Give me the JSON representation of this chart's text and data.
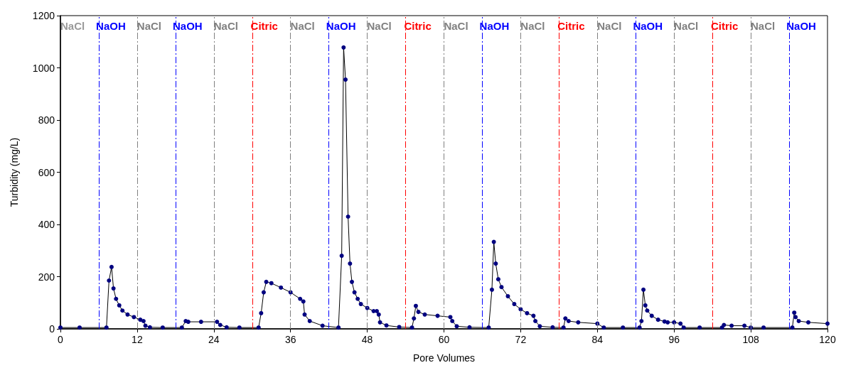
{
  "chart_data": {
    "type": "line",
    "xlabel": "Pore Volumes",
    "ylabel": "Turbidity (mg/L)",
    "xlim": [
      0,
      120
    ],
    "xticks": [
      0,
      12,
      24,
      36,
      48,
      60,
      72,
      84,
      96,
      108,
      120
    ],
    "ylim": [
      0,
      1200
    ],
    "yticks": [
      0,
      200,
      400,
      600,
      800,
      1000,
      1200
    ],
    "marker": "circle",
    "line_style": "solid",
    "grid": false,
    "annotations": [
      "NaCl"
    ],
    "series": [
      {
        "color": "#000080",
        "x": [
          0,
          3,
          7.2,
          7.6,
          8,
          8.3,
          8.7,
          9.2,
          9.7,
          10.5,
          11.5,
          12.5,
          13,
          13.3,
          14,
          16,
          19,
          19.6,
          20,
          22,
          24.5,
          25,
          26,
          28,
          31,
          31.4,
          31.8,
          32.2,
          33,
          34.5,
          36,
          37.5,
          38,
          38.2,
          39,
          41,
          43.5,
          44,
          44.3,
          44.6,
          45,
          45.3,
          45.6,
          46,
          46.5,
          47,
          48,
          49,
          49.5,
          49.8,
          50,
          51,
          53,
          55,
          55.3,
          55.6,
          56,
          57,
          59,
          61,
          61.3,
          62,
          64,
          67,
          67.5,
          67.8,
          68.1,
          68.5,
          69,
          70,
          71,
          72,
          73,
          74,
          74.3,
          75,
          77,
          78.7,
          79,
          79.5,
          81,
          84,
          85,
          88,
          90.6,
          90.9,
          91.2,
          91.5,
          91.8,
          92.5,
          93.5,
          94.5,
          95,
          96,
          97,
          97.5,
          100,
          103.5,
          103.8,
          105,
          107,
          108,
          110,
          114.5,
          114.8,
          115,
          115.5,
          117,
          120
        ],
        "values": [
          5,
          5,
          5,
          185,
          237,
          155,
          115,
          90,
          70,
          55,
          45,
          35,
          30,
          12,
          6,
          5,
          5,
          30,
          27,
          27,
          27,
          15,
          6,
          5,
          5,
          60,
          140,
          180,
          175,
          158,
          140,
          115,
          105,
          55,
          30,
          12,
          5,
          280,
          1078,
          955,
          430,
          250,
          180,
          140,
          115,
          95,
          80,
          68,
          68,
          55,
          25,
          13,
          7,
          5,
          40,
          88,
          65,
          55,
          50,
          45,
          30,
          10,
          6,
          5,
          150,
          333,
          250,
          190,
          160,
          125,
          95,
          75,
          60,
          50,
          30,
          10,
          6,
          5,
          40,
          30,
          25,
          20,
          5,
          5,
          5,
          30,
          150,
          90,
          70,
          50,
          35,
          28,
          25,
          25,
          20,
          5,
          5,
          5,
          15,
          12,
          12,
          5,
          5,
          5,
          62,
          45,
          30,
          25,
          20
        ]
      }
    ],
    "ref_lines": [
      {
        "axis": "x",
        "value": 6,
        "label": "NaOH",
        "color": "#0000ff",
        "line_style": "dashed"
      },
      {
        "axis": "x",
        "value": 12,
        "label": "NaCl",
        "color": "#808080",
        "line_style": "dashed"
      },
      {
        "axis": "x",
        "value": 18,
        "label": "NaOH",
        "color": "#0000ff",
        "line_style": "dashed"
      },
      {
        "axis": "x",
        "value": 24,
        "label": "NaCl",
        "color": "#808080",
        "line_style": "dashed"
      },
      {
        "axis": "x",
        "value": 30,
        "label": "Citric",
        "color": "#ff0000",
        "line_style": "dashed"
      },
      {
        "axis": "x",
        "value": 36,
        "label": "NaCl",
        "color": "#808080",
        "line_style": "dashed"
      },
      {
        "axis": "x",
        "value": 42,
        "label": "NaOH",
        "color": "#0000ff",
        "line_style": "dashed"
      },
      {
        "axis": "x",
        "value": 48,
        "label": "NaCl",
        "color": "#808080",
        "line_style": "dashed"
      },
      {
        "axis": "x",
        "value": 54,
        "label": "Citric",
        "color": "#ff0000",
        "line_style": "dashed"
      },
      {
        "axis": "x",
        "value": 60,
        "label": "NaCl",
        "color": "#808080",
        "line_style": "dashed"
      },
      {
        "axis": "x",
        "value": 66,
        "label": "NaOH",
        "color": "#0000ff",
        "line_style": "dashed"
      },
      {
        "axis": "x",
        "value": 72,
        "label": "NaCl",
        "color": "#808080",
        "line_style": "dashed"
      },
      {
        "axis": "x",
        "value": 78,
        "label": "Citric",
        "color": "#ff0000",
        "line_style": "dashed"
      },
      {
        "axis": "x",
        "value": 84,
        "label": "NaCl",
        "color": "#808080",
        "line_style": "dashed"
      },
      {
        "axis": "x",
        "value": 90,
        "label": "NaOH",
        "color": "#0000ff",
        "line_style": "dashed"
      },
      {
        "axis": "x",
        "value": 96,
        "label": "NaCl",
        "color": "#808080",
        "line_style": "dashed"
      },
      {
        "axis": "x",
        "value": 102,
        "label": "Citric",
        "color": "#ff0000",
        "line_style": "dashed"
      },
      {
        "axis": "x",
        "value": 108,
        "label": "NaCl",
        "color": "#808080",
        "line_style": "dashed"
      },
      {
        "axis": "x",
        "value": 114,
        "label": "NaOH",
        "color": "#0000ff",
        "line_style": "dashed"
      }
    ]
  }
}
